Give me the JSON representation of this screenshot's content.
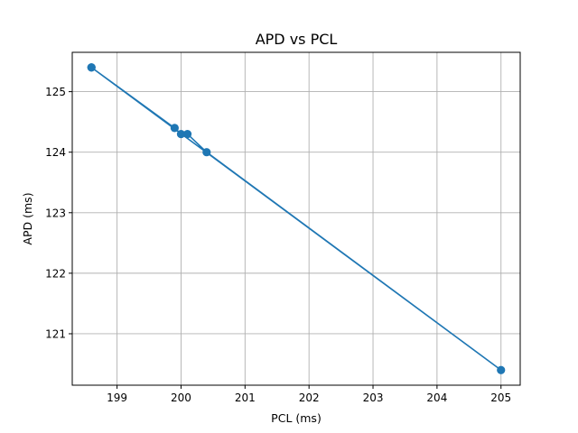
{
  "chart_data": {
    "type": "line",
    "title": "APD vs PCL",
    "xlabel": "PCL (ms)",
    "ylabel": "APD (ms)",
    "xlim": [
      198.3,
      205.3
    ],
    "ylim": [
      120.15,
      125.65
    ],
    "xticks": [
      199,
      200,
      201,
      202,
      203,
      204,
      205
    ],
    "yticks": [
      121,
      122,
      123,
      124,
      125
    ],
    "grid": true,
    "colors": {
      "series": "#1f77b4"
    },
    "series": [
      {
        "x": [
          198.6,
          199.9,
          200.0,
          200.1,
          200.4,
          205.0,
          198.6
        ],
        "y": [
          125.4,
          124.4,
          124.3,
          124.3,
          124.0,
          120.4,
          125.4
        ],
        "marker": "circle"
      }
    ]
  }
}
